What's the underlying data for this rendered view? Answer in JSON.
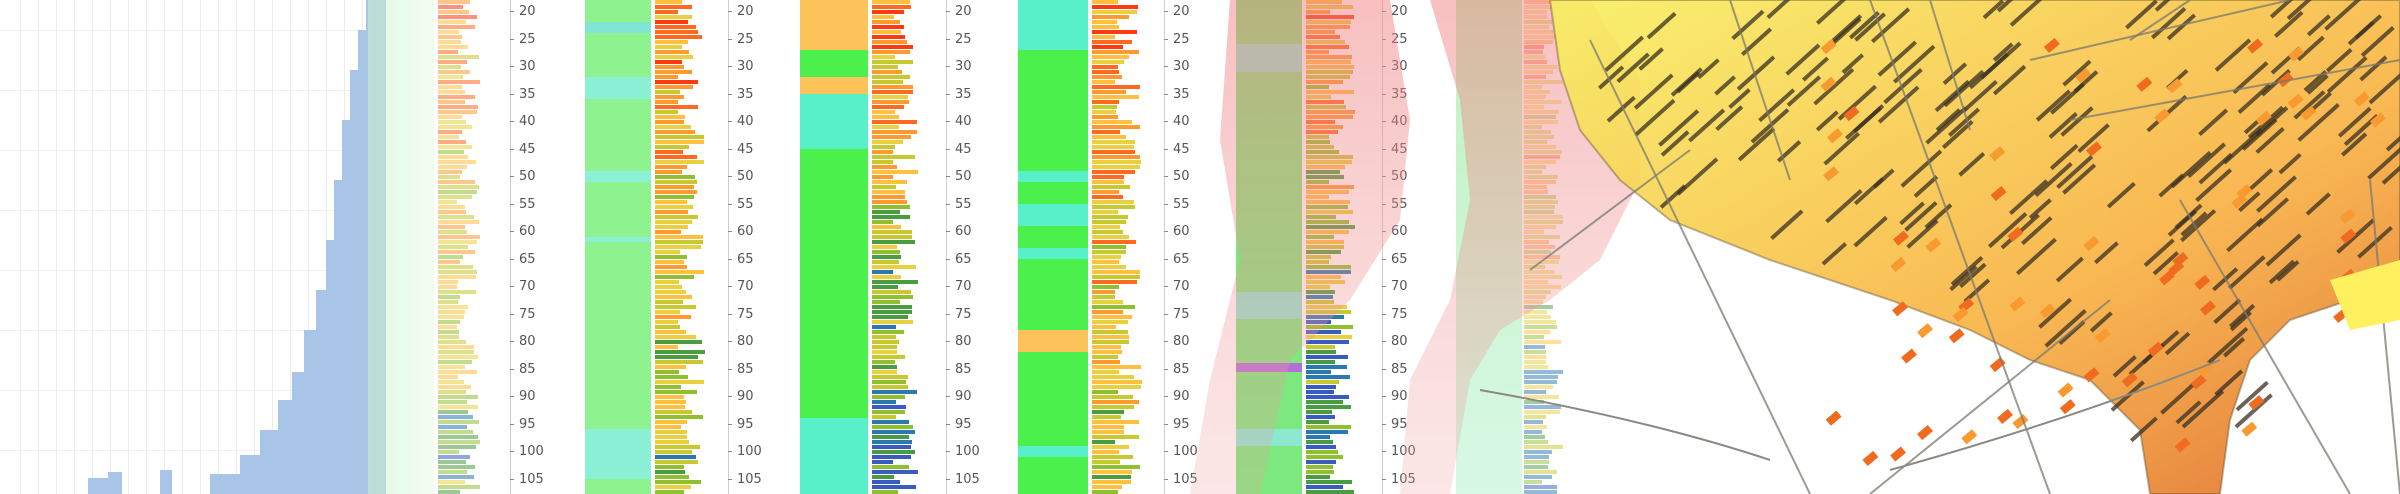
{
  "window": {
    "title": ""
  },
  "depth_axis": {
    "ticks": [
      "20",
      "25",
      "30",
      "35",
      "40",
      "45",
      "50",
      "55",
      "60",
      "65",
      "70",
      "75",
      "80",
      "85",
      "90",
      "95",
      "100",
      "105"
    ],
    "range": [
      18,
      107.5
    ]
  },
  "histogram": {
    "description_values": [
      0.18,
      0.24,
      0.3,
      0.36,
      0.42,
      0.55,
      0.62,
      0.66,
      0.72,
      0.78,
      0.82,
      0.86,
      0.88,
      0.9,
      0.92,
      0.95,
      0.98,
      1.0
    ]
  },
  "logs": [
    {
      "name": "log-track-1",
      "lithology": [
        {
          "from": 18,
          "to": 22,
          "color": "#8ef28e"
        },
        {
          "from": 22,
          "to": 24,
          "color": "#7ee6d2"
        },
        {
          "from": 24,
          "to": 32,
          "color": "#8ef28e"
        },
        {
          "from": 32,
          "to": 36,
          "color": "#8cf0d6"
        },
        {
          "from": 36,
          "to": 49,
          "color": "#8ef28e"
        },
        {
          "from": 49,
          "to": 51,
          "color": "#8cf0d6"
        },
        {
          "from": 51,
          "to": 61,
          "color": "#8ef28e"
        },
        {
          "from": 61,
          "to": 62,
          "color": "#8cf0d6"
        },
        {
          "from": 62,
          "to": 96,
          "color": "#8ef28e"
        },
        {
          "from": 96,
          "to": 105,
          "color": "#8cf0d6"
        },
        {
          "from": 105,
          "to": 108,
          "color": "#8ef28e"
        }
      ]
    },
    {
      "name": "log-track-2",
      "lithology": [
        {
          "from": 18,
          "to": 27,
          "color": "#fbc35a"
        },
        {
          "from": 27,
          "to": 32,
          "color": "#4cf04c"
        },
        {
          "from": 32,
          "to": 35,
          "color": "#fbc35a"
        },
        {
          "from": 35,
          "to": 45,
          "color": "#58f0c8"
        },
        {
          "from": 45,
          "to": 94,
          "color": "#4cf04c"
        },
        {
          "from": 94,
          "to": 108,
          "color": "#58f0c8"
        }
      ]
    },
    {
      "name": "log-track-3",
      "lithology": [
        {
          "from": 18,
          "to": 27,
          "color": "#58f0c8"
        },
        {
          "from": 27,
          "to": 49,
          "color": "#4cf04c"
        },
        {
          "from": 49,
          "to": 51,
          "color": "#58f0c8"
        },
        {
          "from": 51,
          "to": 55,
          "color": "#4cf04c"
        },
        {
          "from": 55,
          "to": 59,
          "color": "#58f0c8"
        },
        {
          "from": 59,
          "to": 63,
          "color": "#4cf04c"
        },
        {
          "from": 63,
          "to": 65,
          "color": "#58f0c8"
        },
        {
          "from": 65,
          "to": 78,
          "color": "#4cf04c"
        },
        {
          "from": 78,
          "to": 82,
          "color": "#fbc35a"
        },
        {
          "from": 82,
          "to": 99,
          "color": "#4cf04c"
        },
        {
          "from": 99,
          "to": 101,
          "color": "#58f0c8"
        },
        {
          "from": 101,
          "to": 108,
          "color": "#4cf04c"
        }
      ]
    },
    {
      "name": "log-track-4",
      "lithology": [
        {
          "from": 18,
          "to": 26,
          "color": "#7de87d"
        },
        {
          "from": 26,
          "to": 31,
          "color": "#8ce8d0"
        },
        {
          "from": 31,
          "to": 71,
          "color": "#7de87d"
        },
        {
          "from": 71,
          "to": 76,
          "color": "#8ce8d0"
        },
        {
          "from": 76,
          "to": 84,
          "color": "#7de87d"
        },
        {
          "from": 84,
          "to": 85.5,
          "color": "#b56fd8"
        },
        {
          "from": 85.5,
          "to": 96,
          "color": "#7de87d"
        },
        {
          "from": 96,
          "to": 99,
          "color": "#8ce8d0"
        },
        {
          "from": 99,
          "to": 108,
          "color": "#7de87d"
        }
      ]
    }
  ],
  "palette": {
    "hot": [
      "#ff3a10",
      "#ff6a20",
      "#ff9a30",
      "#ffc040",
      "#e8d040",
      "#c8c830",
      "#90c030",
      "#4a9c40",
      "#2a7ab0",
      "#3a5cc0"
    ]
  }
}
